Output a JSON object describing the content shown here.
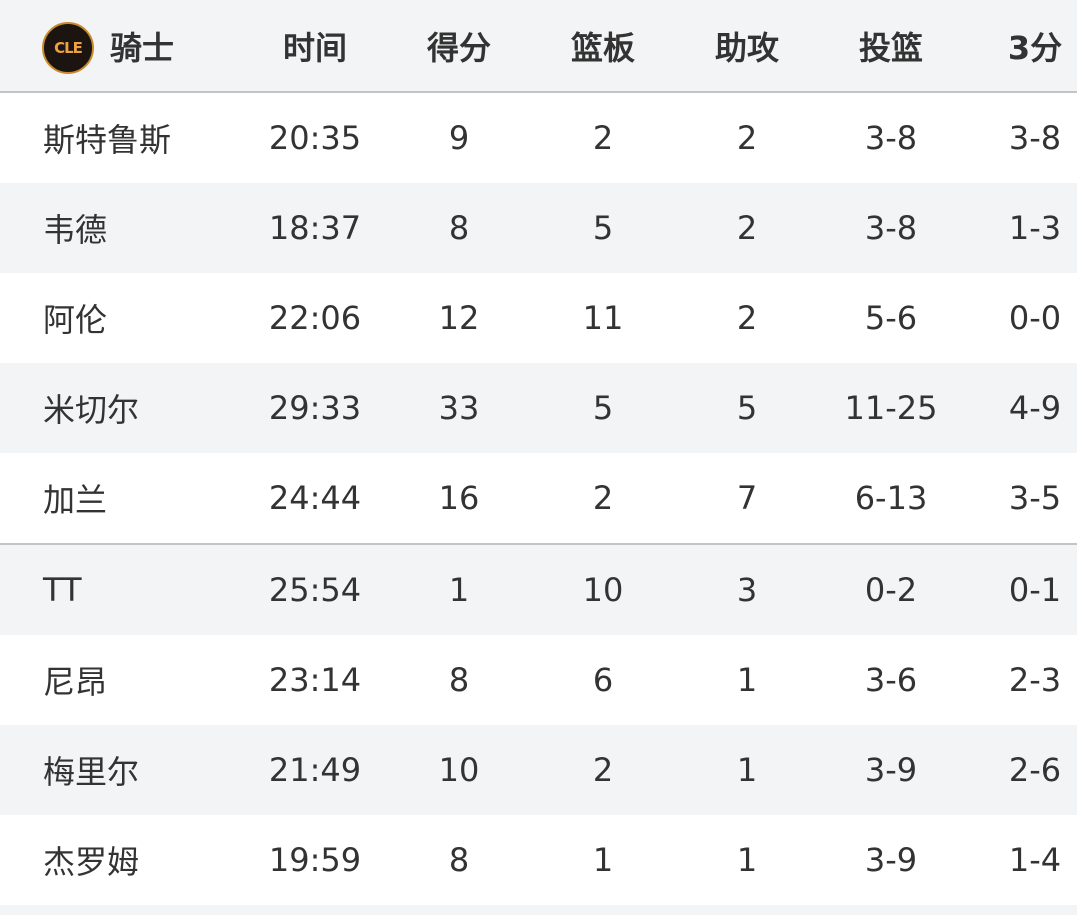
{
  "header": {
    "team_logo_text": "CLE",
    "team": "骑士",
    "columns": [
      "时间",
      "得分",
      "篮板",
      "助攻",
      "投篮",
      "3分"
    ]
  },
  "rows": [
    {
      "name": "斯特鲁斯",
      "time": "20:35",
      "pts": "9",
      "reb": "2",
      "ast": "2",
      "fg": "3-8",
      "three": "3-8"
    },
    {
      "name": "韦德",
      "time": "18:37",
      "pts": "8",
      "reb": "5",
      "ast": "2",
      "fg": "3-8",
      "three": "1-3"
    },
    {
      "name": "阿伦",
      "time": "22:06",
      "pts": "12",
      "reb": "11",
      "ast": "2",
      "fg": "5-6",
      "three": "0-0"
    },
    {
      "name": "米切尔",
      "time": "29:33",
      "pts": "33",
      "reb": "5",
      "ast": "5",
      "fg": "11-25",
      "three": "4-9"
    },
    {
      "name": "加兰",
      "time": "24:44",
      "pts": "16",
      "reb": "2",
      "ast": "7",
      "fg": "6-13",
      "three": "3-5"
    },
    {
      "name": "TT",
      "time": "25:54",
      "pts": "1",
      "reb": "10",
      "ast": "3",
      "fg": "0-2",
      "three": "0-1"
    },
    {
      "name": "尼昂",
      "time": "23:14",
      "pts": "8",
      "reb": "6",
      "ast": "1",
      "fg": "3-6",
      "three": "2-3"
    },
    {
      "name": "梅里尔",
      "time": "21:49",
      "pts": "10",
      "reb": "2",
      "ast": "1",
      "fg": "3-9",
      "three": "2-6"
    },
    {
      "name": "杰罗姆",
      "time": "19:59",
      "pts": "8",
      "reb": "1",
      "ast": "1",
      "fg": "3-9",
      "three": "1-4"
    }
  ]
}
